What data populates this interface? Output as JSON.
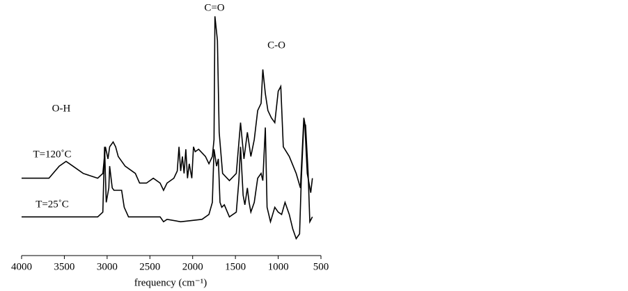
{
  "chart_data": {
    "type": "line",
    "x_label": "frequency (cm⁻¹)",
    "annotations": [
      "C=O",
      "C-O",
      "O-H"
    ],
    "xlim": [
      4000,
      500
    ],
    "xticks": [
      4000,
      3500,
      3000,
      2500,
      2000,
      1500,
      1000,
      500
    ],
    "ylim": [
      0,
      100
    ],
    "series": [
      {
        "name": "T=120˚C",
        "color": "#000000",
        "x": [
          4000,
          3850,
          3680,
          3560,
          3480,
          3400,
          3280,
          3110,
          3050,
          3020,
          2990,
          2970,
          2930,
          2900,
          2870,
          2790,
          2670,
          2620,
          2540,
          2460,
          2380,
          2340,
          2300,
          2220,
          2180,
          2160,
          2140,
          2120,
          2100,
          2080,
          2060,
          2040,
          2010,
          1990,
          1970,
          1930,
          1850,
          1810,
          1770,
          1750,
          1740,
          1710,
          1690,
          1650,
          1570,
          1490,
          1440,
          1400,
          1360,
          1320,
          1280,
          1240,
          1200,
          1180,
          1150,
          1120,
          1080,
          1040,
          1000,
          970,
          940,
          870,
          790,
          740,
          700,
          690,
          660,
          620,
          600
        ],
        "values": [
          32,
          32,
          32,
          37,
          39,
          37,
          34,
          32,
          34,
          45,
          40,
          45,
          47,
          45,
          41,
          37,
          34,
          30,
          30,
          32,
          30,
          27,
          30,
          32,
          35,
          45,
          35,
          41,
          34,
          44,
          32,
          38,
          32,
          45,
          43,
          44,
          41,
          38,
          41,
          48,
          99,
          89,
          51,
          34,
          31,
          34,
          55,
          40,
          51,
          41,
          48,
          60,
          63,
          77,
          67,
          60,
          57,
          55,
          68,
          70,
          45,
          41,
          34,
          28,
          57,
          55,
          34,
          26,
          32
        ]
      },
      {
        "name": "T=25˚C",
        "color": "#000000",
        "x": [
          4000,
          3760,
          3440,
          3110,
          3050,
          3030,
          3010,
          2980,
          2970,
          2940,
          2920,
          2870,
          2830,
          2800,
          2750,
          2380,
          2340,
          2300,
          2140,
          1890,
          1810,
          1770,
          1750,
          1720,
          1700,
          1680,
          1660,
          1630,
          1570,
          1490,
          1460,
          1440,
          1410,
          1390,
          1360,
          1340,
          1320,
          1280,
          1240,
          1200,
          1180,
          1150,
          1130,
          1090,
          1040,
          1000,
          960,
          920,
          870,
          830,
          790,
          750,
          730,
          700,
          680,
          650,
          630,
          600
        ],
        "values": [
          16,
          16,
          16,
          16,
          18,
          45,
          22,
          28,
          37,
          28,
          27,
          27,
          27,
          20,
          16,
          16,
          14,
          15,
          14,
          15,
          17,
          22,
          44,
          37,
          40,
          22,
          20,
          21,
          16,
          18,
          31,
          45,
          25,
          21,
          28,
          22,
          18,
          22,
          32,
          34,
          31,
          53,
          20,
          14,
          20,
          18,
          17,
          22,
          17,
          11,
          7,
          9,
          31,
          55,
          54,
          34,
          14,
          16
        ]
      }
    ]
  }
}
